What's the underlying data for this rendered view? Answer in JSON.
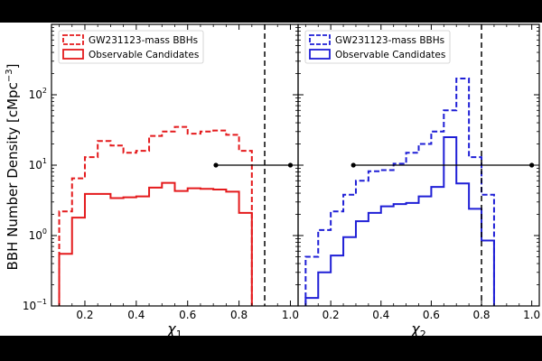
{
  "figure": {
    "ylabel": "BBH Number Density [cMpc",
    "ylabel_sup": "−3",
    "ylabel_tail": "]"
  },
  "chart_data": [
    {
      "type": "histogram",
      "xlabel": "χ",
      "xlabel_sub": "1",
      "xlim": [
        0.07,
        1.03
      ],
      "ylim": [
        0.1,
        1000
      ],
      "yscale": "log",
      "xticks": [
        "0.2",
        "0.4",
        "0.6",
        "0.8",
        "1.0"
      ],
      "yticks": [
        "10",
        "10",
        "10",
        "10"
      ],
      "ytick_exponents": [
        "−1",
        "0",
        "1",
        "2"
      ],
      "ytick_values": [
        0.1,
        1,
        10,
        100
      ],
      "legend_position": "top-left",
      "color": "#e41a1c",
      "bin_edges": [
        0.1,
        0.15,
        0.2,
        0.25,
        0.3,
        0.35,
        0.4,
        0.45,
        0.5,
        0.55,
        0.6,
        0.65,
        0.7,
        0.75,
        0.8,
        0.85
      ],
      "series": [
        {
          "name": "GW231123-mass BBHs",
          "style": "dashed",
          "values": [
            2.2,
            6.5,
            13,
            22,
            19,
            15,
            16,
            26,
            30,
            35,
            28,
            30,
            31,
            27,
            16
          ]
        },
        {
          "name": "Observable Candidates",
          "style": "solid",
          "values": [
            0.55,
            1.8,
            3.9,
            3.9,
            3.4,
            3.5,
            3.6,
            4.8,
            5.6,
            4.3,
            4.7,
            4.6,
            4.5,
            4.2,
            2.1
          ]
        }
      ],
      "vline_x": 0.9,
      "hline": {
        "y": 10,
        "x_from": 0.71,
        "x_to": 1.0
      }
    },
    {
      "type": "histogram",
      "xlabel": "χ",
      "xlabel_sub": "2",
      "xlim": [
        0.07,
        1.03
      ],
      "ylim": [
        0.1,
        1000
      ],
      "yscale": "log",
      "xticks": [
        "0.2",
        "0.4",
        "0.6",
        "0.8",
        "1.0"
      ],
      "yticks": [],
      "ytick_values": [
        0.1,
        1,
        10,
        100
      ],
      "legend_position": "top-left",
      "color": "#1f1fd6",
      "bin_edges": [
        0.1,
        0.15,
        0.2,
        0.25,
        0.3,
        0.35,
        0.4,
        0.45,
        0.5,
        0.55,
        0.6,
        0.65,
        0.7,
        0.75,
        0.8,
        0.85
      ],
      "series": [
        {
          "name": "GW231123-mass BBHs",
          "style": "dashed",
          "values": [
            0.5,
            1.2,
            2.2,
            3.8,
            6,
            8.2,
            8.5,
            10.5,
            15,
            20,
            30,
            60,
            170,
            13,
            3.8
          ]
        },
        {
          "name": "Observable Candidates",
          "style": "solid",
          "values": [
            0.13,
            0.3,
            0.52,
            0.95,
            1.6,
            2.1,
            2.6,
            2.8,
            2.9,
            3.6,
            4.9,
            25,
            5.5,
            2.4,
            0.85
          ]
        }
      ],
      "vline_x": 0.8,
      "hline": {
        "y": 10,
        "x_from": 0.29,
        "x_to": 1.0
      }
    }
  ]
}
